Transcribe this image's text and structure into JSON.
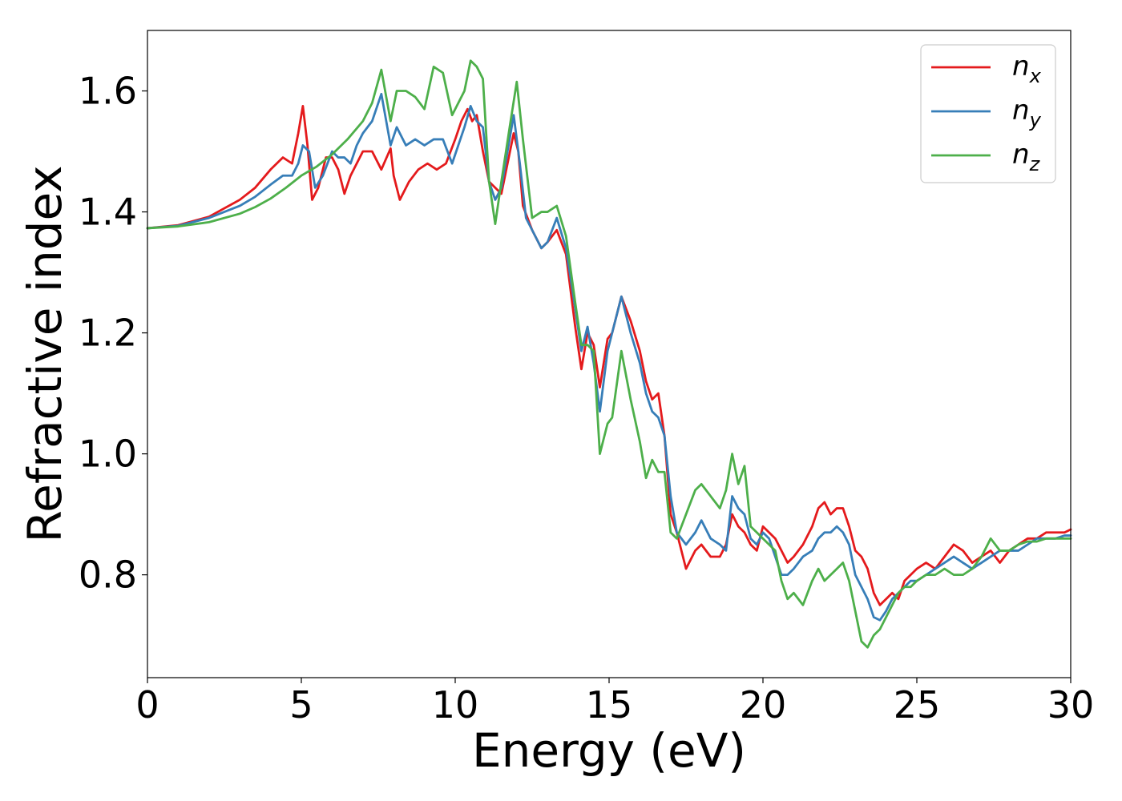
{
  "chart_data": {
    "type": "line",
    "title": "",
    "xlabel": "Energy (eV)",
    "ylabel": "Refractive index",
    "xlim": [
      0,
      30
    ],
    "ylim": [
      0.63,
      1.7
    ],
    "xticks": [
      0,
      5,
      10,
      15,
      20,
      25,
      30
    ],
    "yticks": [
      0.8,
      1.0,
      1.2,
      1.4,
      1.6
    ],
    "xtick_labels": [
      "0",
      "5",
      "10",
      "15",
      "20",
      "25",
      "30"
    ],
    "ytick_labels": [
      "0.8",
      "1.0",
      "1.2",
      "1.4",
      "1.6"
    ],
    "grid": false,
    "legend_position": "top-right",
    "series": [
      {
        "name": "n_x",
        "legend_base": "n",
        "legend_sub": "x",
        "color": "#e41a1c",
        "x": [
          0,
          1,
          2,
          3,
          3.5,
          4,
          4.4,
          4.7,
          4.9,
          5.05,
          5.2,
          5.35,
          5.55,
          5.8,
          6.0,
          6.2,
          6.4,
          6.6,
          6.8,
          7.0,
          7.3,
          7.6,
          7.9,
          8.0,
          8.2,
          8.5,
          8.8,
          9.1,
          9.4,
          9.7,
          10.0,
          10.2,
          10.4,
          10.55,
          10.7,
          10.9,
          11.1,
          11.3,
          11.5,
          11.7,
          11.9,
          12.05,
          12.2,
          12.5,
          12.8,
          13.0,
          13.3,
          13.6,
          13.9,
          14.1,
          14.3,
          14.5,
          14.7,
          14.95,
          15.1,
          15.4,
          15.7,
          16.0,
          16.2,
          16.4,
          16.6,
          16.8,
          17.0,
          17.2,
          17.5,
          17.8,
          18.0,
          18.3,
          18.6,
          18.8,
          19.0,
          19.2,
          19.4,
          19.6,
          19.8,
          20.0,
          20.2,
          20.4,
          20.6,
          20.8,
          21.0,
          21.3,
          21.6,
          21.8,
          22.0,
          22.2,
          22.4,
          22.6,
          22.8,
          23.0,
          23.2,
          23.4,
          23.6,
          23.8,
          24.0,
          24.2,
          24.4,
          24.6,
          24.8,
          25.0,
          25.3,
          25.6,
          25.9,
          26.2,
          26.5,
          26.8,
          27.1,
          27.4,
          27.7,
          28.0,
          28.3,
          28.6,
          28.9,
          29.2,
          29.5,
          29.8,
          30.0
        ],
        "y": [
          1.373,
          1.378,
          1.392,
          1.42,
          1.44,
          1.47,
          1.49,
          1.48,
          1.53,
          1.575,
          1.51,
          1.42,
          1.44,
          1.49,
          1.49,
          1.47,
          1.43,
          1.46,
          1.48,
          1.5,
          1.5,
          1.47,
          1.505,
          1.46,
          1.42,
          1.45,
          1.47,
          1.48,
          1.47,
          1.48,
          1.52,
          1.55,
          1.57,
          1.55,
          1.56,
          1.5,
          1.45,
          1.44,
          1.43,
          1.48,
          1.53,
          1.5,
          1.41,
          1.37,
          1.34,
          1.35,
          1.37,
          1.33,
          1.21,
          1.14,
          1.2,
          1.18,
          1.11,
          1.19,
          1.2,
          1.26,
          1.22,
          1.17,
          1.12,
          1.09,
          1.1,
          1.03,
          0.9,
          0.87,
          0.81,
          0.84,
          0.85,
          0.83,
          0.83,
          0.85,
          0.9,
          0.88,
          0.87,
          0.85,
          0.84,
          0.88,
          0.87,
          0.86,
          0.84,
          0.82,
          0.83,
          0.85,
          0.88,
          0.91,
          0.92,
          0.9,
          0.91,
          0.91,
          0.88,
          0.84,
          0.83,
          0.81,
          0.77,
          0.75,
          0.76,
          0.77,
          0.76,
          0.79,
          0.8,
          0.81,
          0.82,
          0.81,
          0.83,
          0.85,
          0.84,
          0.82,
          0.83,
          0.84,
          0.82,
          0.84,
          0.85,
          0.86,
          0.86,
          0.87,
          0.87,
          0.87,
          0.875
        ]
      },
      {
        "name": "n_y",
        "legend_base": "n",
        "legend_sub": "y",
        "color": "#377eb8",
        "x": [
          0,
          1,
          2,
          3,
          3.5,
          4,
          4.4,
          4.7,
          4.9,
          5.05,
          5.25,
          5.45,
          5.7,
          6.0,
          6.2,
          6.4,
          6.6,
          6.8,
          7.0,
          7.3,
          7.6,
          7.9,
          8.1,
          8.4,
          8.7,
          9.0,
          9.3,
          9.6,
          9.9,
          10.1,
          10.3,
          10.5,
          10.7,
          10.9,
          11.1,
          11.3,
          11.5,
          11.7,
          11.9,
          12.1,
          12.3,
          12.5,
          12.8,
          13.0,
          13.3,
          13.6,
          13.9,
          14.1,
          14.3,
          14.5,
          14.7,
          14.95,
          15.1,
          15.4,
          15.7,
          16.0,
          16.2,
          16.4,
          16.6,
          16.8,
          17.0,
          17.2,
          17.5,
          17.8,
          18.0,
          18.3,
          18.6,
          18.8,
          19.0,
          19.2,
          19.4,
          19.6,
          19.8,
          20.0,
          20.2,
          20.4,
          20.6,
          20.8,
          21.0,
          21.3,
          21.6,
          21.8,
          22.0,
          22.2,
          22.4,
          22.6,
          22.8,
          23.0,
          23.2,
          23.4,
          23.6,
          23.8,
          24.0,
          24.2,
          24.4,
          24.6,
          24.8,
          25.0,
          25.3,
          25.6,
          25.9,
          26.2,
          26.5,
          26.8,
          27.1,
          27.4,
          27.7,
          28.0,
          28.3,
          28.6,
          28.9,
          29.2,
          29.5,
          29.8,
          30.0
        ],
        "y": [
          1.373,
          1.377,
          1.39,
          1.41,
          1.425,
          1.445,
          1.46,
          1.46,
          1.48,
          1.51,
          1.5,
          1.44,
          1.46,
          1.5,
          1.49,
          1.49,
          1.48,
          1.51,
          1.53,
          1.55,
          1.595,
          1.51,
          1.54,
          1.51,
          1.52,
          1.51,
          1.52,
          1.52,
          1.48,
          1.51,
          1.54,
          1.575,
          1.55,
          1.54,
          1.45,
          1.42,
          1.44,
          1.5,
          1.56,
          1.48,
          1.39,
          1.37,
          1.34,
          1.35,
          1.39,
          1.34,
          1.24,
          1.17,
          1.21,
          1.15,
          1.07,
          1.17,
          1.2,
          1.26,
          1.2,
          1.15,
          1.1,
          1.07,
          1.06,
          1.03,
          0.93,
          0.87,
          0.85,
          0.87,
          0.89,
          0.86,
          0.85,
          0.84,
          0.93,
          0.91,
          0.9,
          0.86,
          0.85,
          0.87,
          0.86,
          0.83,
          0.8,
          0.8,
          0.81,
          0.83,
          0.84,
          0.86,
          0.87,
          0.87,
          0.88,
          0.87,
          0.85,
          0.8,
          0.78,
          0.76,
          0.73,
          0.725,
          0.74,
          0.76,
          0.77,
          0.78,
          0.79,
          0.79,
          0.8,
          0.81,
          0.82,
          0.83,
          0.82,
          0.81,
          0.82,
          0.83,
          0.84,
          0.84,
          0.84,
          0.85,
          0.86,
          0.86,
          0.86,
          0.865,
          0.865
        ],
        "note": ""
      },
      {
        "name": "n_z",
        "legend_base": "n",
        "legend_sub": "z",
        "color": "#4daf4a",
        "x": [
          0,
          1,
          2,
          3,
          3.5,
          4,
          4.5,
          5,
          5.5,
          6.0,
          6.5,
          7.0,
          7.3,
          7.6,
          7.9,
          8.1,
          8.4,
          8.7,
          9.0,
          9.3,
          9.6,
          9.9,
          10.1,
          10.3,
          10.5,
          10.7,
          10.9,
          11.1,
          11.3,
          11.5,
          11.8,
          12.0,
          12.2,
          12.5,
          12.8,
          13.0,
          13.3,
          13.6,
          13.9,
          14.1,
          14.3,
          14.5,
          14.7,
          14.95,
          15.1,
          15.4,
          15.7,
          16.0,
          16.2,
          16.4,
          16.6,
          16.8,
          17.0,
          17.2,
          17.5,
          17.8,
          18.0,
          18.3,
          18.6,
          18.8,
          19.0,
          19.2,
          19.4,
          19.6,
          19.8,
          20.0,
          20.2,
          20.4,
          20.6,
          20.8,
          21.0,
          21.3,
          21.6,
          21.8,
          22.0,
          22.2,
          22.4,
          22.6,
          22.8,
          23.0,
          23.2,
          23.4,
          23.6,
          23.8,
          24.0,
          24.2,
          24.4,
          24.6,
          24.8,
          25.0,
          25.3,
          25.6,
          25.9,
          26.2,
          26.5,
          26.8,
          27.1,
          27.4,
          27.7,
          28.0,
          28.3,
          28.6,
          28.9,
          29.2,
          29.5,
          29.8,
          30.0
        ],
        "y": [
          1.373,
          1.376,
          1.383,
          1.397,
          1.408,
          1.422,
          1.44,
          1.46,
          1.475,
          1.495,
          1.52,
          1.55,
          1.58,
          1.635,
          1.55,
          1.6,
          1.6,
          1.59,
          1.57,
          1.64,
          1.63,
          1.56,
          1.58,
          1.6,
          1.65,
          1.64,
          1.62,
          1.45,
          1.38,
          1.45,
          1.55,
          1.615,
          1.52,
          1.39,
          1.4,
          1.4,
          1.41,
          1.36,
          1.25,
          1.18,
          1.18,
          1.17,
          1.0,
          1.05,
          1.06,
          1.17,
          1.09,
          1.02,
          0.96,
          0.99,
          0.97,
          0.97,
          0.87,
          0.86,
          0.9,
          0.94,
          0.95,
          0.93,
          0.91,
          0.94,
          1.0,
          0.95,
          0.98,
          0.88,
          0.87,
          0.86,
          0.85,
          0.84,
          0.79,
          0.76,
          0.77,
          0.75,
          0.79,
          0.81,
          0.79,
          0.8,
          0.81,
          0.82,
          0.79,
          0.74,
          0.69,
          0.68,
          0.7,
          0.71,
          0.73,
          0.75,
          0.77,
          0.78,
          0.78,
          0.79,
          0.8,
          0.8,
          0.81,
          0.8,
          0.8,
          0.81,
          0.83,
          0.86,
          0.84,
          0.84,
          0.85,
          0.855,
          0.855,
          0.86,
          0.86,
          0.86,
          0.86
        ],
        "note": ""
      }
    ]
  }
}
